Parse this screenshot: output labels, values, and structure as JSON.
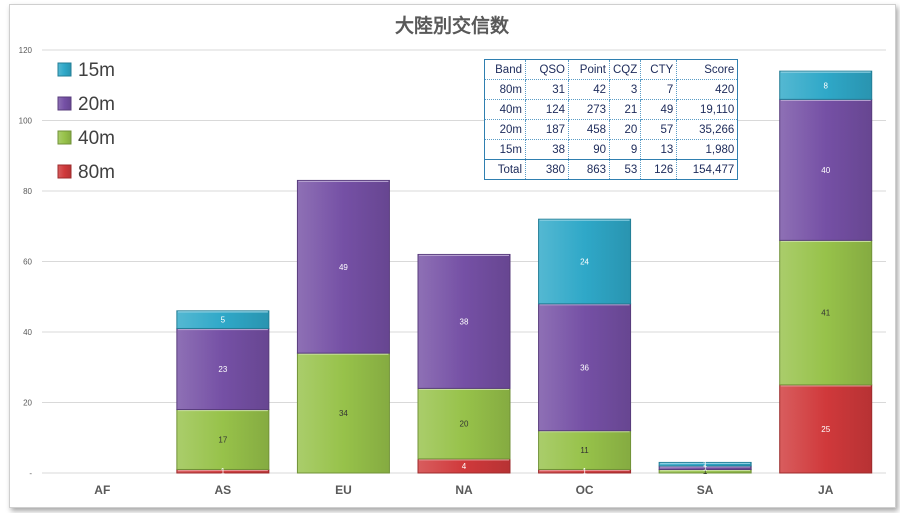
{
  "chart_data": {
    "type": "bar",
    "stacked": true,
    "title": "大陸別交信数",
    "categories": [
      "AF",
      "AS",
      "EU",
      "NA",
      "OC",
      "SA",
      "JA"
    ],
    "ylim": [
      0,
      120
    ],
    "yticks": [
      0,
      20,
      40,
      60,
      80,
      100,
      120
    ],
    "ytick_labels": [
      "-",
      "20",
      "40",
      "60",
      "80",
      "100",
      "120"
    ],
    "grid": true,
    "legend_position": "top-left",
    "series": [
      {
        "name": "80m",
        "color": "#d0393b",
        "values": [
          0,
          1,
          0,
          4,
          1,
          0,
          25
        ],
        "labels": [
          "",
          "1",
          "",
          "4",
          "1",
          "",
          "25"
        ]
      },
      {
        "name": "40m",
        "color": "#97c24a",
        "values": [
          0,
          17,
          34,
          20,
          11,
          1,
          41
        ],
        "labels": [
          "",
          "17",
          "34",
          "20",
          "11",
          "1",
          "41"
        ]
      },
      {
        "name": "20m",
        "color": "#7550a5",
        "values": [
          0,
          23,
          49,
          38,
          36,
          1,
          40
        ],
        "labels": [
          "",
          "23",
          "49",
          "38",
          "36",
          "1",
          "40"
        ]
      },
      {
        "name": "15m",
        "color": "#2fa8c8",
        "values": [
          0,
          5,
          0,
          0,
          24,
          1,
          8
        ],
        "labels": [
          "",
          "5",
          "",
          "",
          "24",
          "1",
          "8"
        ]
      }
    ],
    "legend_order": [
      "15m",
      "20m",
      "40m",
      "80m"
    ]
  },
  "table": {
    "headers": [
      "Band",
      "QSO",
      "Point",
      "CQZ",
      "CTY",
      "Score"
    ],
    "rows": [
      [
        "80m",
        "31",
        "42",
        "3",
        "7",
        "420"
      ],
      [
        "40m",
        "124",
        "273",
        "21",
        "49",
        "19,110"
      ],
      [
        "20m",
        "187",
        "458",
        "20",
        "57",
        "35,266"
      ],
      [
        "15m",
        "38",
        "90",
        "9",
        "13",
        "1,980"
      ],
      [
        "Total",
        "380",
        "863",
        "53",
        "126",
        "154,477"
      ]
    ]
  }
}
